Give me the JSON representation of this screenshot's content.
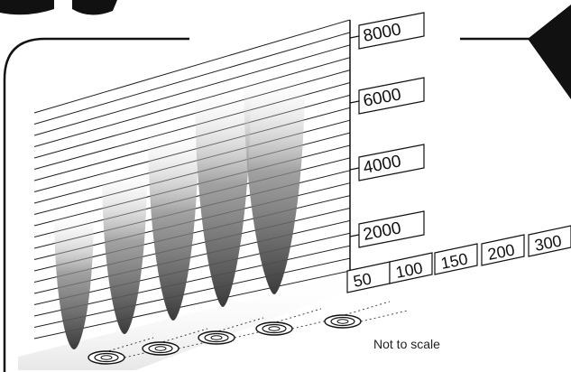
{
  "chart_data": {
    "type": "area",
    "y_axis": {
      "ticks": [
        "2000",
        "4000",
        "6000",
        "8000"
      ]
    },
    "x_axis": {
      "ticks": [
        "50",
        "100",
        "150",
        "200",
        "300"
      ]
    },
    "series": [
      {
        "values": [
          5000
        ]
      },
      {
        "values": [
          6000
        ]
      },
      {
        "values": [
          7000
        ]
      },
      {
        "values": [
          8000
        ]
      },
      {
        "values": [
          8000
        ]
      }
    ],
    "annotations": [
      "Not to scale"
    ]
  },
  "colors": {
    "beam_dark": "#3a3a3a",
    "beam_light": "#ffffff",
    "ink": "#111111",
    "panel_dark": "#111111"
  }
}
